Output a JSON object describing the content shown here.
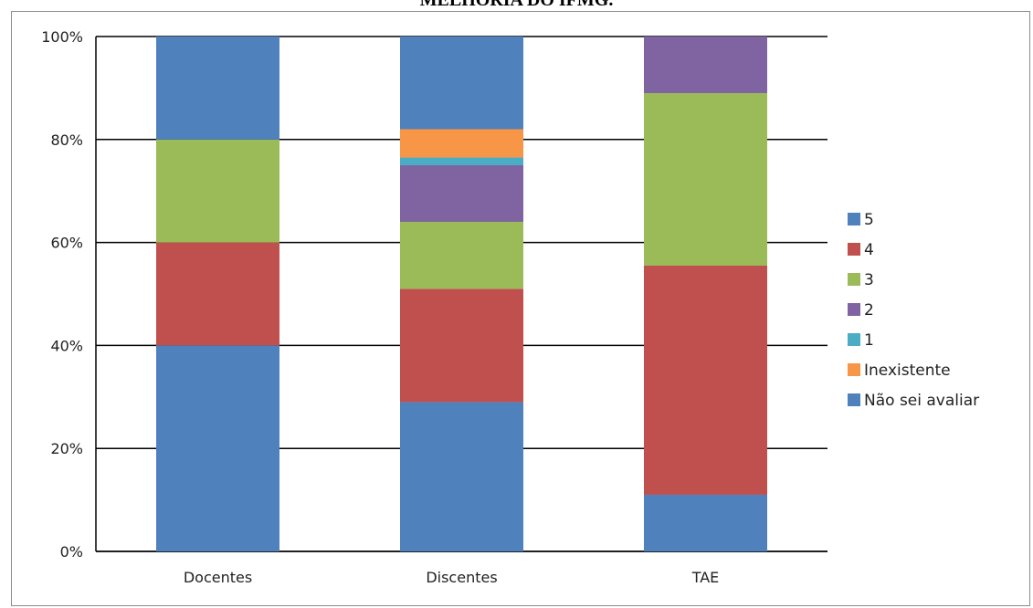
{
  "header": {
    "title": "MELHORIA DO IFMG."
  },
  "chart_data": {
    "type": "bar",
    "stacked": true,
    "percent": true,
    "categories": [
      "Docentes",
      "Discentes",
      "TAE"
    ],
    "ylim": [
      0,
      100
    ],
    "yticks": [
      "0%",
      "20%",
      "40%",
      "60%",
      "80%",
      "100%"
    ],
    "grid": true,
    "legend_position": "right",
    "series": [
      {
        "name": "Não sei avaliar",
        "color": "#4f81bd",
        "values": [
          40,
          29,
          11
        ]
      },
      {
        "name": "Inexistente",
        "color": "#f79646",
        "values": [
          0,
          5.5,
          0
        ]
      },
      {
        "name": "1",
        "color": "#4bacc6",
        "values": [
          0,
          1.5,
          0
        ]
      },
      {
        "name": "2",
        "color": "#8064a2",
        "values": [
          0,
          11,
          11
        ]
      },
      {
        "name": "3",
        "color": "#9bbb59",
        "values": [
          20,
          13,
          33.5
        ]
      },
      {
        "name": "4",
        "color": "#c0504d",
        "values": [
          20,
          22,
          44.5
        ]
      },
      {
        "name": "5",
        "color": "#4f81bd",
        "values": [
          20,
          18,
          0
        ]
      }
    ],
    "stack_order": [
      "Não sei avaliar",
      "4",
      "3",
      "2",
      "1",
      "Inexistente",
      "5"
    ],
    "legend_order": [
      "5",
      "4",
      "3",
      "2",
      "1",
      "Inexistente",
      "Não sei avaliar"
    ]
  }
}
